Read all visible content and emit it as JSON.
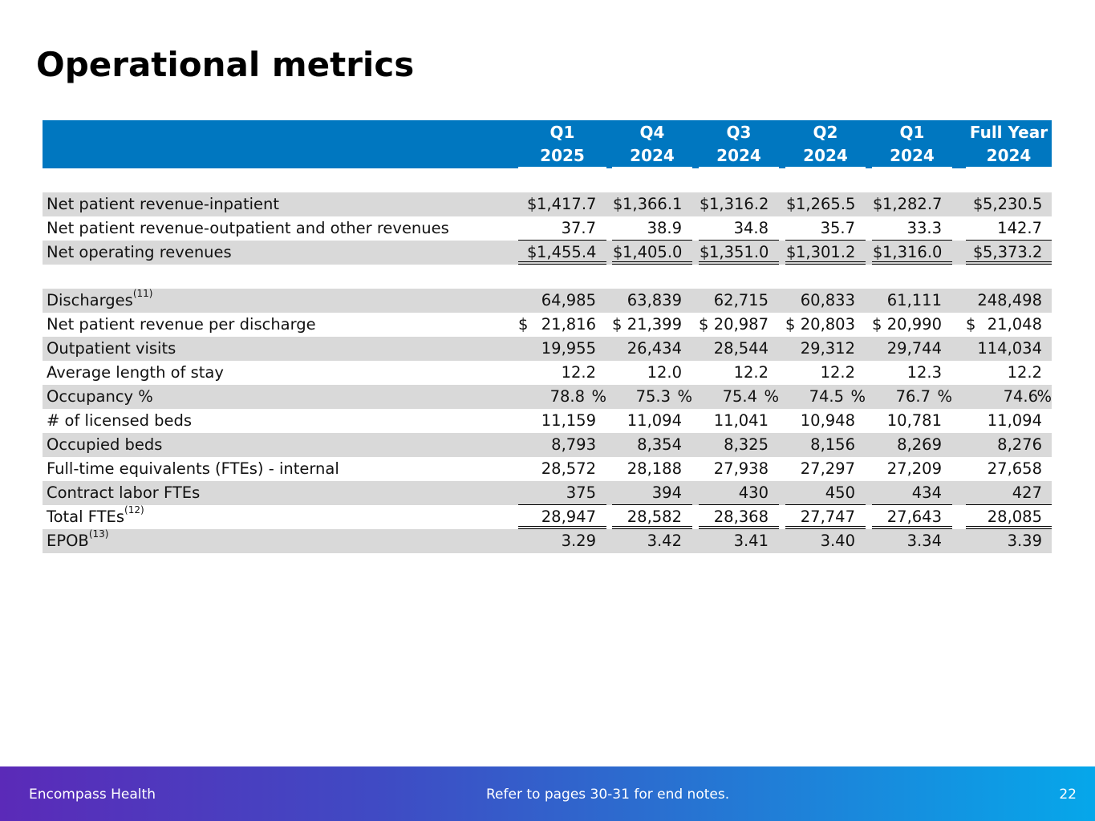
{
  "title": "Operational metrics",
  "columns": [
    {
      "line1": "Q1",
      "line2": "2025"
    },
    {
      "line1": "Q4",
      "line2": "2024"
    },
    {
      "line1": "Q3",
      "line2": "2024"
    },
    {
      "line1": "Q2",
      "line2": "2024"
    },
    {
      "line1": "Q1",
      "line2": "2024"
    },
    {
      "line1": "Full Year",
      "line2": "2024"
    }
  ],
  "rows": [
    {
      "label": "Net patient revenue-inpatient",
      "sup": "",
      "dollar": true,
      "values": [
        "1,417.7",
        "1,366.1",
        "1,316.2",
        "1,265.5",
        "1,282.7",
        "5,230.5"
      ],
      "shade": true,
      "border": "",
      "gapBefore": false,
      "pct": false
    },
    {
      "label": "Net patient revenue-outpatient and other revenues",
      "sup": "",
      "dollar": false,
      "values": [
        "37.7",
        "38.9",
        "34.8",
        "35.7",
        "33.3",
        "142.7"
      ],
      "shade": false,
      "border": "single",
      "gapBefore": false,
      "pct": false
    },
    {
      "label": "Net operating revenues",
      "sup": "",
      "dollar": true,
      "values": [
        "1,455.4",
        "1,405.0",
        "1,351.0",
        "1,301.2",
        "1,316.0",
        "5,373.2"
      ],
      "shade": true,
      "border": "double",
      "gapBefore": false,
      "pct": false
    },
    {
      "label": "Discharges",
      "sup": "(11)",
      "dollar": false,
      "values": [
        "64,985",
        "63,839",
        "62,715",
        "60,833",
        "61,111",
        "248,498"
      ],
      "shade": true,
      "border": "",
      "gapBefore": true,
      "pct": false
    },
    {
      "label": "Net patient revenue per discharge",
      "sup": "",
      "dollar": true,
      "spacedDollar": true,
      "values": [
        "21,816",
        "21,399",
        "20,987",
        "20,803",
        "20,990",
        "21,048"
      ],
      "shade": false,
      "border": "",
      "gapBefore": false,
      "pct": false
    },
    {
      "label": "Outpatient visits",
      "sup": "",
      "dollar": false,
      "values": [
        "19,955",
        "26,434",
        "28,544",
        "29,312",
        "29,744",
        "114,034"
      ],
      "shade": true,
      "border": "",
      "gapBefore": false,
      "pct": false
    },
    {
      "label": "Average length of stay",
      "sup": "",
      "dollar": false,
      "values": [
        "12.2",
        "12.0",
        "12.2",
        "12.2",
        "12.3",
        "12.2"
      ],
      "shade": false,
      "border": "",
      "gapBefore": false,
      "pct": false
    },
    {
      "label": "Occupancy %",
      "sup": "",
      "dollar": false,
      "values": [
        "78.8",
        "75.3",
        "75.4",
        "74.5",
        "76.7",
        "74.6"
      ],
      "shade": true,
      "border": "",
      "gapBefore": false,
      "pct": true
    },
    {
      "label": "# of licensed beds",
      "sup": "",
      "dollar": false,
      "values": [
        "11,159",
        "11,094",
        "11,041",
        "10,948",
        "10,781",
        "11,094"
      ],
      "shade": false,
      "border": "",
      "gapBefore": false,
      "pct": false
    },
    {
      "label": "Occupied beds",
      "sup": "",
      "dollar": false,
      "values": [
        "8,793",
        "8,354",
        "8,325",
        "8,156",
        "8,269",
        "8,276"
      ],
      "shade": true,
      "border": "",
      "gapBefore": false,
      "pct": false
    },
    {
      "label": "Full-time equivalents (FTEs) - internal",
      "sup": "",
      "dollar": false,
      "values": [
        "28,572",
        "28,188",
        "27,938",
        "27,297",
        "27,209",
        "27,658"
      ],
      "shade": false,
      "border": "",
      "gapBefore": false,
      "pct": false
    },
    {
      "label": "Contract labor FTEs",
      "sup": "",
      "dollar": false,
      "values": [
        "375",
        "394",
        "430",
        "450",
        "434",
        "427"
      ],
      "shade": true,
      "border": "single",
      "gapBefore": false,
      "pct": false
    },
    {
      "label": "Total FTEs",
      "sup": "(12)",
      "dollar": false,
      "values": [
        "28,947",
        "28,582",
        "28,368",
        "27,747",
        "27,643",
        "28,085"
      ],
      "shade": false,
      "border": "double",
      "gapBefore": false,
      "pct": false
    },
    {
      "label": "EPOB",
      "sup": "(13)",
      "dollar": false,
      "values": [
        "3.29",
        "3.42",
        "3.41",
        "3.40",
        "3.34",
        "3.39"
      ],
      "shade": true,
      "border": "",
      "gapBefore": false,
      "pct": false
    }
  ],
  "symbols": {
    "dollar": "$",
    "percent": "%"
  },
  "footer": {
    "company": "Encompass Health",
    "note": "Refer to pages 30-31 for end notes.",
    "page": "22"
  }
}
